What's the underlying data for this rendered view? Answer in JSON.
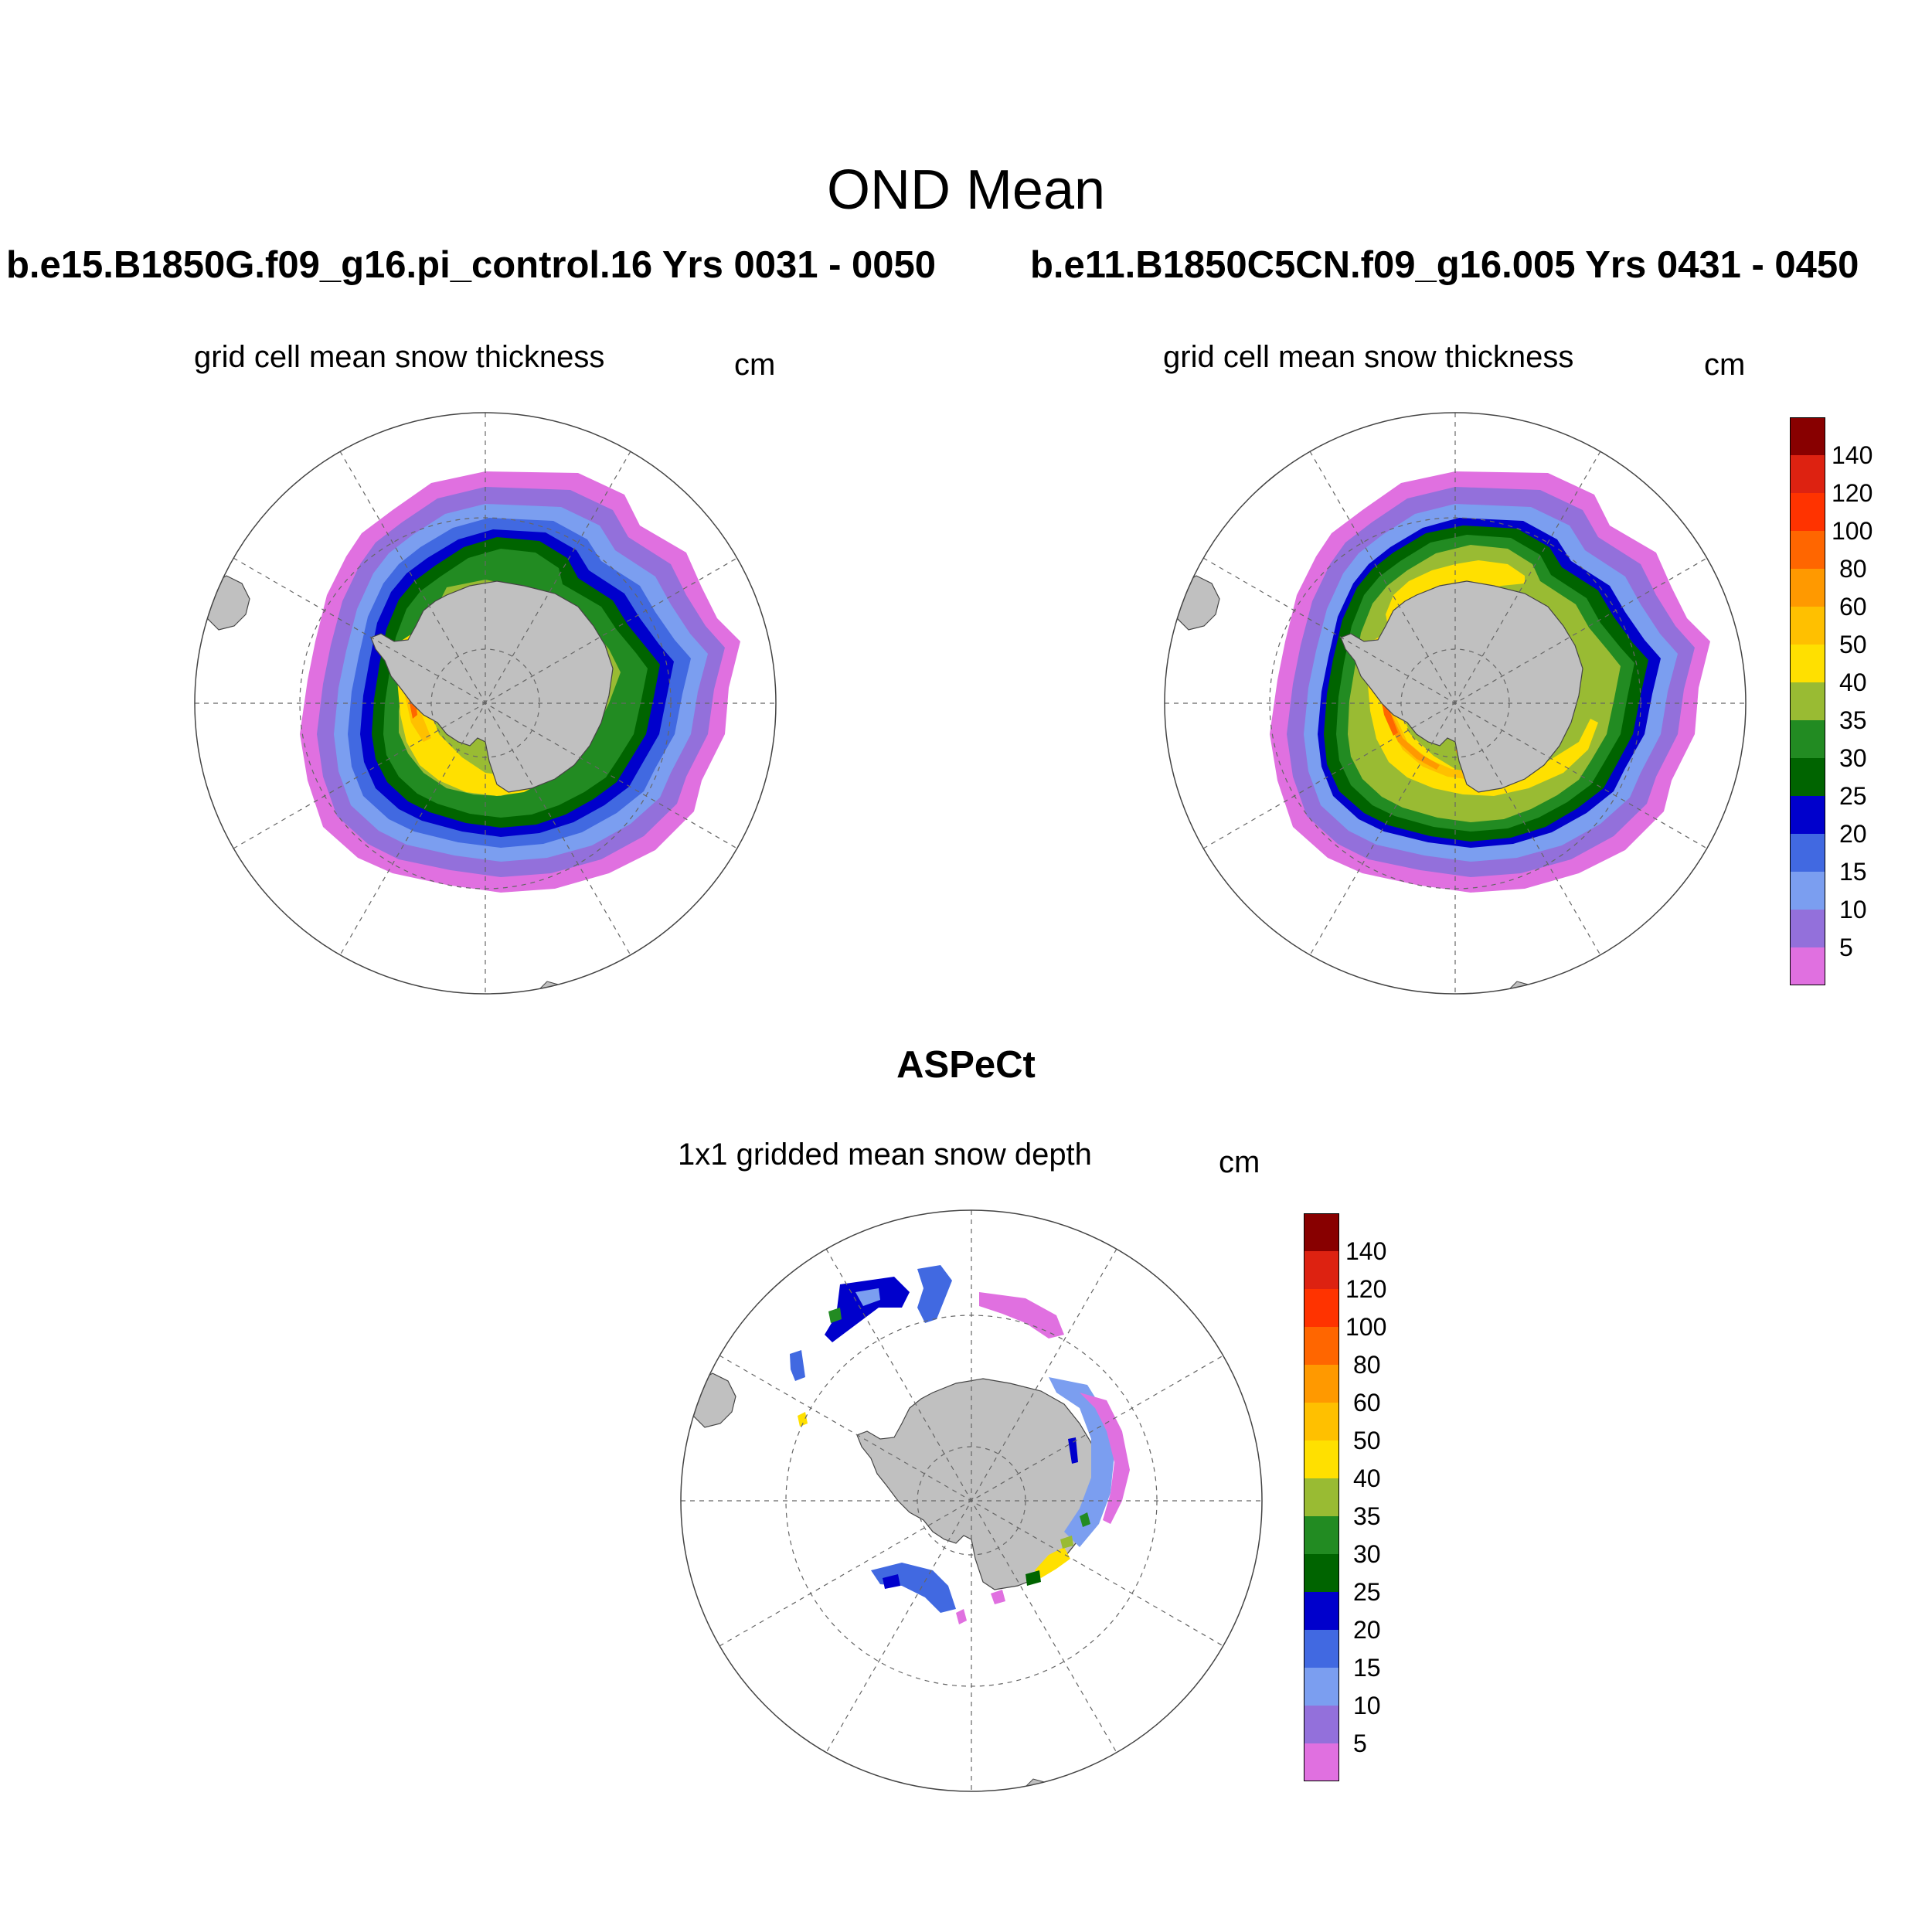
{
  "figure": {
    "title": "OND Mean",
    "panels": [
      {
        "case": "b.e15.B1850G.f09_g16.pi_control.16  Yrs 0031 - 0050",
        "subtitle": "grid cell mean snow thickness",
        "unit": "cm"
      },
      {
        "case": "b.e11.B1850C5CN.f09_g16.005  Yrs 0431 - 0450",
        "subtitle": "grid cell mean snow thickness",
        "unit": "cm"
      },
      {
        "case": "ASPeCt",
        "subtitle": "1x1 gridded mean snow depth",
        "unit": "cm"
      }
    ]
  },
  "colorbar": {
    "labels": [
      "140",
      "120",
      "100",
      "80",
      "60",
      "50",
      "40",
      "35",
      "30",
      "25",
      "20",
      "15",
      "10",
      "5"
    ],
    "colors_top_to_bottom": [
      "#880000",
      "#dd2211",
      "#ff3300",
      "#ff6600",
      "#ff9900",
      "#ffc000",
      "#ffe000",
      "#99bb33",
      "#228b22",
      "#006400",
      "#0000cc",
      "#4169e1",
      "#7b9ef0",
      "#9370db",
      "#e070e0"
    ]
  },
  "map_colors": {
    "land": "#c0c0c0",
    "grid": "#666666"
  }
}
